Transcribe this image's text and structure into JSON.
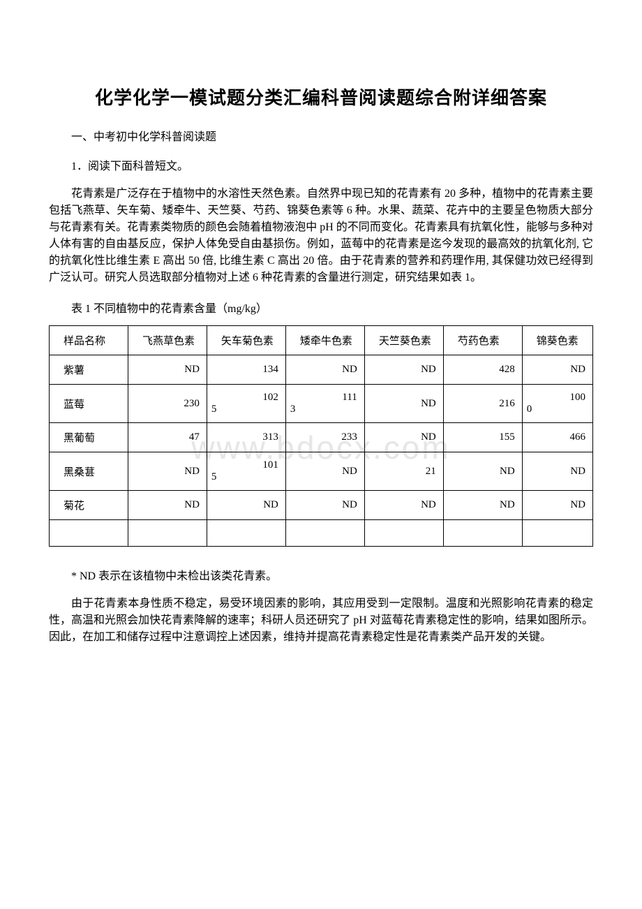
{
  "title": "化学化学一模试题分类汇编科普阅读题综合附详细答案",
  "section_header": "一、中考初中化学科普阅读题",
  "item_number": "1．阅读下面科普短文。",
  "paragraph1": "花青素是广泛存在于植物中的水溶性天然色素。自然界中现已知的花青素有 20 多种，植物中的花青素主要包括飞燕草、矢车菊、矮牵牛、天竺葵、芍药、锦葵色素等 6 种。水果、蔬菜、花卉中的主要呈色物质大部分与花青素有关。花青素类物质的颜色会随着植物液泡中 pH 的不同而变化。花青素具有抗氧化性，能够与多种对人体有害的自由基反应，保护人体免受自由基损伤。例如，蓝莓中的花青素是迄今发现的最高效的抗氧化剂, 它的抗氧化性比维生素 E 高出 50 倍, 比维生素 C 高出 20 倍。由于花青素的营养和药理作用, 其保健功效已经得到广泛认可。研究人员选取部分植物对上述 6 种花青素的含量进行测定，研究结果如表 1。",
  "table_caption": "表 1 不同植物中的花青素含量（mg/kg）",
  "table": {
    "columns": [
      "样品名称",
      "飞燕草色素",
      "矢车菊色素",
      "矮牵牛色素",
      "天竺葵色素",
      "芍药色素",
      "锦葵色素"
    ],
    "rows": [
      {
        "label": "紫薯",
        "values": [
          "ND",
          "134",
          "ND",
          "ND",
          "428",
          "ND"
        ]
      },
      {
        "label": "蓝莓",
        "values": [
          "230",
          "1025",
          "1113",
          "ND",
          "216",
          "1000"
        ]
      },
      {
        "label": "黑葡萄",
        "values": [
          "47",
          "313",
          "233",
          "ND",
          "155",
          "466"
        ]
      },
      {
        "label": "黑桑葚",
        "values": [
          "ND",
          "1015",
          "ND",
          "21",
          "ND",
          "ND"
        ]
      },
      {
        "label": "菊花",
        "values": [
          "ND",
          "ND",
          "ND",
          "ND",
          "ND",
          "ND"
        ]
      }
    ],
    "split_cells": {
      "蓝莓": {
        "1": [
          "102",
          "5"
        ],
        "2": [
          "111",
          "3"
        ],
        "5": [
          "100",
          "0"
        ]
      },
      "黑桑葚": {
        "1": [
          "101",
          "5"
        ]
      }
    }
  },
  "footnote": "* ND 表示在该植物中未检出该类花青素。",
  "paragraph2": "由于花青素本身性质不稳定，易受环境因素的影响，其应用受到一定限制。温度和光照影响花青素的稳定性，高温和光照会加快花青素降解的速率；科研人员还研究了 pH 对蓝莓花青素稳定性的影响，结果如图所示。因此，在加工和储存过程中注意调控上述因素，维持并提高花青素稳定性是花青素类产品开发的关键。",
  "watermark": "www.bdocx.com"
}
